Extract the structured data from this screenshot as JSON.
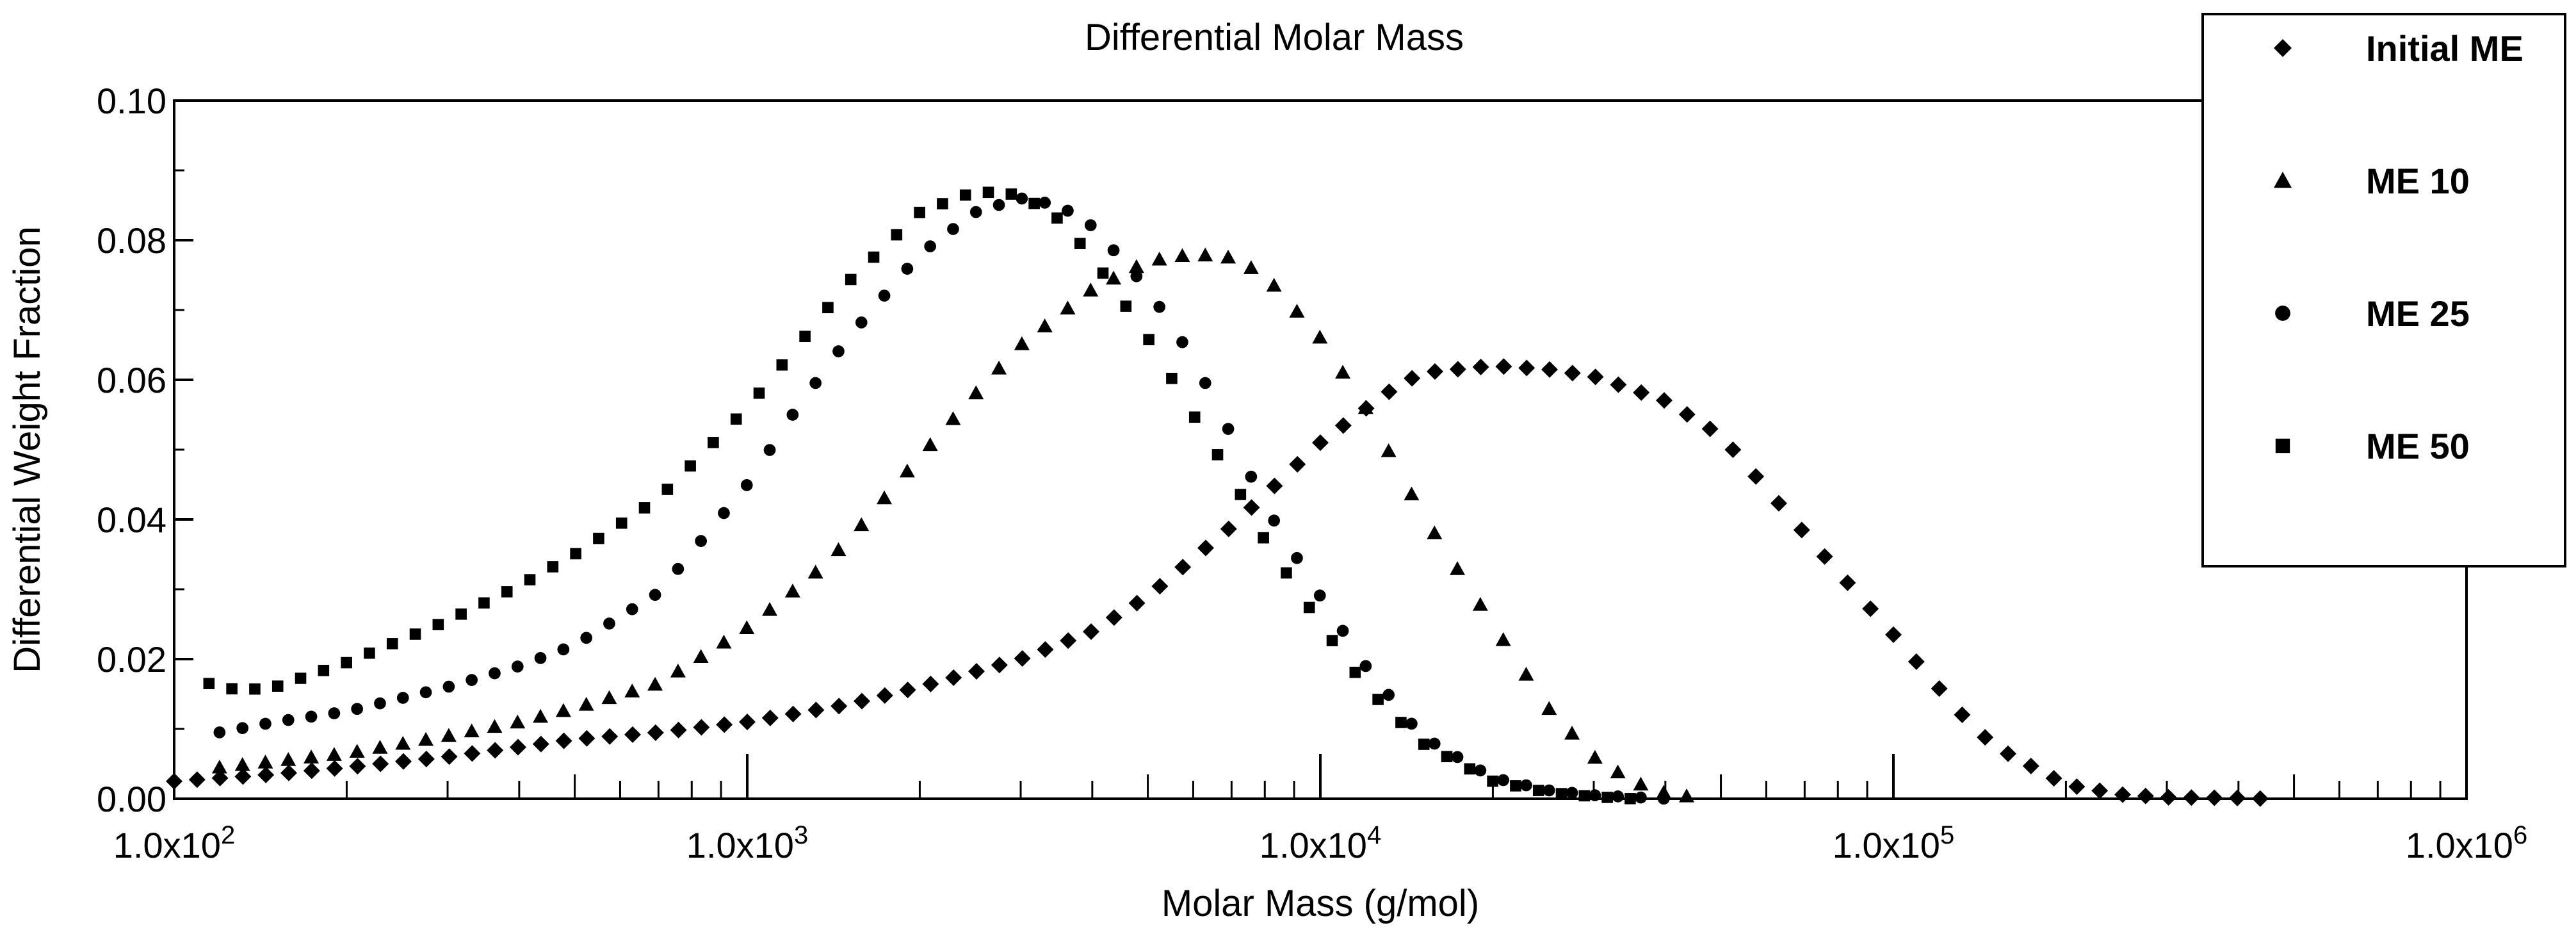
{
  "chart_data": {
    "type": "scatter",
    "title": "Differential Molar Mass",
    "xlabel": "Molar Mass (g/mol)",
    "ylabel": "Differential Weight Fraction",
    "xscale": "log",
    "xlim": [
      100,
      1000000
    ],
    "ylim": [
      0,
      0.1
    ],
    "x_ticks": [
      100,
      1000,
      10000,
      100000,
      1000000
    ],
    "x_tick_labels": [
      "1.0x10",
      "1.0x10",
      "1.0x10",
      "1.0x10",
      "1.0x10"
    ],
    "x_tick_exponents": [
      "2",
      "3",
      "4",
      "5",
      "6"
    ],
    "y_ticks": [
      0,
      0.02,
      0.04,
      0.06,
      0.08,
      0.1
    ],
    "y_tick_labels": [
      "0.00",
      "0.02",
      "0.04",
      "0.06",
      "0.08",
      "0.10"
    ],
    "legend_position": "top-right",
    "series": [
      {
        "name": "Initial ME",
        "marker": "diamond",
        "x": [
          100,
          150,
          200,
          300,
          500,
          700,
          1000,
          1500,
          2000,
          3000,
          4000,
          5000,
          7000,
          10000,
          13000,
          15000,
          20000,
          25000,
          30000,
          40000,
          50000,
          70000,
          80000,
          100000,
          130000,
          150000,
          200000,
          250000,
          300000,
          400000,
          450000
        ],
        "y": [
          0.0025,
          0.0035,
          0.0045,
          0.006,
          0.0085,
          0.0095,
          0.011,
          0.0135,
          0.016,
          0.02,
          0.024,
          0.029,
          0.039,
          0.051,
          0.058,
          0.061,
          0.062,
          0.0615,
          0.0605,
          0.057,
          0.052,
          0.038,
          0.0325,
          0.0235,
          0.0125,
          0.0075,
          0.002,
          0.0006,
          0.0002,
          0.0001,
          0.0
        ]
      },
      {
        "name": "ME 10",
        "marker": "triangle",
        "x": [
          120,
          200,
          300,
          400,
          500,
          700,
          1000,
          1300,
          1500,
          2000,
          2500,
          3000,
          4000,
          5000,
          6000,
          7000,
          8000,
          10000,
          12000,
          15000,
          20000,
          25000,
          30000,
          35000,
          40000,
          45000
        ],
        "y": [
          0.0045,
          0.0065,
          0.009,
          0.011,
          0.013,
          0.0165,
          0.0245,
          0.032,
          0.037,
          0.049,
          0.058,
          0.065,
          0.073,
          0.077,
          0.078,
          0.0775,
          0.075,
          0.066,
          0.056,
          0.041,
          0.025,
          0.013,
          0.006,
          0.0025,
          0.0008,
          0.0002
        ]
      },
      {
        "name": "ME 25",
        "marker": "circle",
        "x": [
          120,
          150,
          200,
          300,
          400,
          500,
          700,
          1000,
          1200,
          1500,
          2000,
          2500,
          3000,
          3500,
          4000,
          5000,
          6000,
          7000,
          8000,
          10000,
          12000,
          15000,
          20000,
          25000,
          30000,
          40000
        ],
        "y": [
          0.0095,
          0.011,
          0.0125,
          0.016,
          0.019,
          0.022,
          0.0295,
          0.045,
          0.055,
          0.066,
          0.078,
          0.084,
          0.086,
          0.085,
          0.082,
          0.073,
          0.063,
          0.052,
          0.042,
          0.029,
          0.019,
          0.009,
          0.003,
          0.0012,
          0.0005,
          0.0
        ]
      },
      {
        "name": "ME 50",
        "marker": "square",
        "x": [
          115,
          130,
          150,
          200,
          300,
          400,
          500,
          700,
          1000,
          1200,
          1500,
          2000,
          2500,
          3000,
          3500,
          4000,
          5000,
          6000,
          7000,
          8000,
          10000,
          12000,
          15000,
          20000,
          25000,
          30000,
          35000
        ],
        "y": [
          0.0165,
          0.0155,
          0.016,
          0.0195,
          0.0255,
          0.0305,
          0.035,
          0.043,
          0.056,
          0.064,
          0.074,
          0.084,
          0.087,
          0.0865,
          0.083,
          0.0775,
          0.066,
          0.055,
          0.046,
          0.037,
          0.025,
          0.016,
          0.008,
          0.0025,
          0.0009,
          0.0003,
          0.0
        ]
      }
    ]
  }
}
